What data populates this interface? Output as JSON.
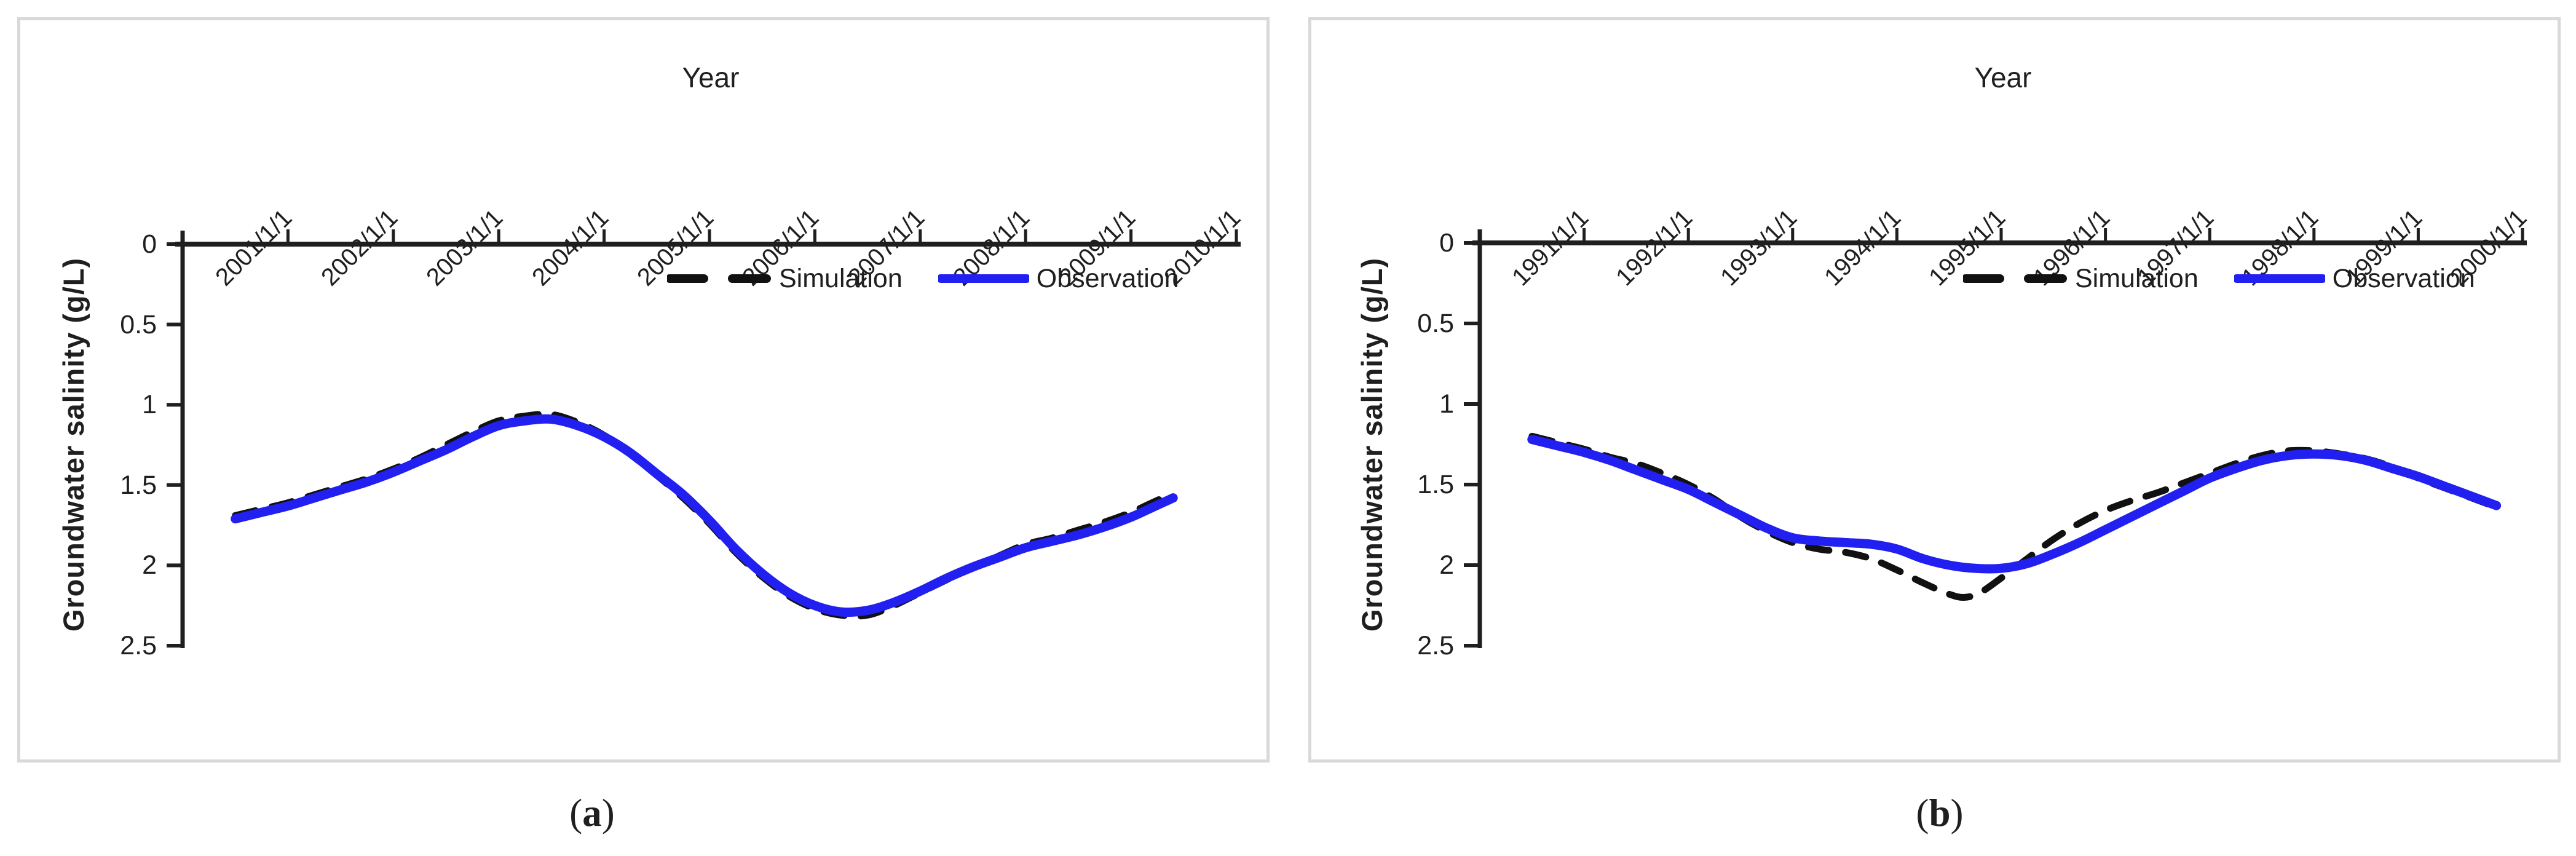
{
  "colors": {
    "observation": "#2120f0",
    "simulation": "#111111",
    "axis": "#1f1f1f",
    "panel_border": "#d9d9d9",
    "background": "#ffffff"
  },
  "captions": {
    "a": "(a)",
    "b": "(b)"
  },
  "chart_data": [
    {
      "type": "line",
      "panel": "a",
      "caption": "(a)",
      "title": "Year",
      "xlabel": "Year",
      "ylabel": "Groundwater salinity (g/L)",
      "ylim": [
        0,
        2.5
      ],
      "y_reversed": true,
      "grid": false,
      "legend_position": "inside-top",
      "x_tick_labels": [
        "2001/1/1",
        "2002/1/1",
        "2003/1/1",
        "2004/1/1",
        "2005/1/1",
        "2006/1/1",
        "2007/1/1",
        "2008/1/1",
        "2009/1/1",
        "2010/1/1"
      ],
      "y_tick_labels": [
        "0",
        "0.5",
        "1",
        "1.5",
        "2",
        "2.5"
      ],
      "x_range_years": [
        2000.0,
        2010.05
      ],
      "legend": [
        {
          "label": "Simulation",
          "style": "dashed",
          "color": "#111111"
        },
        {
          "label": "Observation",
          "style": "solid",
          "color": "#2120f0"
        }
      ],
      "series": [
        {
          "name": "Simulation",
          "style": "dashed",
          "points": [
            [
              2000.5,
              1.69
            ],
            [
              2000.75,
              1.65
            ],
            [
              2001,
              1.61
            ],
            [
              2001.25,
              1.56
            ],
            [
              2001.5,
              1.51
            ],
            [
              2001.75,
              1.46
            ],
            [
              2002,
              1.4
            ],
            [
              2002.25,
              1.33
            ],
            [
              2002.5,
              1.25
            ],
            [
              2002.75,
              1.17
            ],
            [
              2003,
              1.1
            ],
            [
              2003.25,
              1.07
            ],
            [
              2003.5,
              1.06
            ],
            [
              2003.75,
              1.11
            ],
            [
              2004,
              1.19
            ],
            [
              2004.25,
              1.31
            ],
            [
              2004.5,
              1.44
            ],
            [
              2004.75,
              1.58
            ],
            [
              2005,
              1.74
            ],
            [
              2005.25,
              1.92
            ],
            [
              2005.5,
              2.07
            ],
            [
              2005.75,
              2.19
            ],
            [
              2006,
              2.27
            ],
            [
              2006.25,
              2.31
            ],
            [
              2006.5,
              2.31
            ],
            [
              2006.75,
              2.25
            ],
            [
              2007,
              2.17
            ],
            [
              2007.25,
              2.09
            ],
            [
              2007.5,
              2.01
            ],
            [
              2007.75,
              1.94
            ],
            [
              2008,
              1.87
            ],
            [
              2008.25,
              1.83
            ],
            [
              2008.5,
              1.78
            ],
            [
              2008.75,
              1.73
            ],
            [
              2009,
              1.67
            ],
            [
              2009.2,
              1.61
            ],
            [
              2009.4,
              1.55
            ]
          ]
        },
        {
          "name": "Observation",
          "style": "solid",
          "points": [
            [
              2000.5,
              1.71
            ],
            [
              2000.75,
              1.67
            ],
            [
              2001,
              1.63
            ],
            [
              2001.25,
              1.58
            ],
            [
              2001.5,
              1.53
            ],
            [
              2001.75,
              1.48
            ],
            [
              2002,
              1.42
            ],
            [
              2002.25,
              1.35
            ],
            [
              2002.5,
              1.28
            ],
            [
              2002.75,
              1.2
            ],
            [
              2003,
              1.13
            ],
            [
              2003.25,
              1.1
            ],
            [
              2003.5,
              1.09
            ],
            [
              2003.75,
              1.13
            ],
            [
              2004,
              1.2
            ],
            [
              2004.25,
              1.3
            ],
            [
              2004.5,
              1.43
            ],
            [
              2004.75,
              1.56
            ],
            [
              2005,
              1.72
            ],
            [
              2005.25,
              1.9
            ],
            [
              2005.5,
              2.05
            ],
            [
              2005.75,
              2.17
            ],
            [
              2006,
              2.25
            ],
            [
              2006.25,
              2.29
            ],
            [
              2006.5,
              2.28
            ],
            [
              2006.75,
              2.23
            ],
            [
              2007,
              2.16
            ],
            [
              2007.25,
              2.08
            ],
            [
              2007.5,
              2.01
            ],
            [
              2007.75,
              1.95
            ],
            [
              2008,
              1.89
            ],
            [
              2008.25,
              1.85
            ],
            [
              2008.5,
              1.81
            ],
            [
              2008.75,
              1.76
            ],
            [
              2009,
              1.7
            ],
            [
              2009.2,
              1.64
            ],
            [
              2009.4,
              1.58
            ]
          ]
        }
      ]
    },
    {
      "type": "line",
      "panel": "b",
      "caption": "(b)",
      "title": "Year",
      "xlabel": "Year",
      "ylabel": "Groundwater salinity (g/L)",
      "ylim": [
        0,
        2.5
      ],
      "y_reversed": true,
      "grid": false,
      "legend_position": "inside-top",
      "x_tick_labels": [
        "1991/1/1",
        "1992/1/1",
        "1993/1/1",
        "1994/1/1",
        "1995/1/1",
        "1996/1/1",
        "1997/1/1",
        "1998/1/1",
        "1999/1/1",
        "2000/1/1"
      ],
      "y_tick_labels": [
        "0",
        "0.5",
        "1",
        "1.5",
        "2",
        "2.5"
      ],
      "x_range_years": [
        1990.0,
        2000.05
      ],
      "legend": [
        {
          "label": "Simulation",
          "style": "dashed",
          "color": "#111111"
        },
        {
          "label": "Observation",
          "style": "solid",
          "color": "#2120f0"
        }
      ],
      "series": [
        {
          "name": "Simulation",
          "style": "dashed",
          "points": [
            [
              1990.5,
              1.2
            ],
            [
              1990.75,
              1.24
            ],
            [
              1991,
              1.28
            ],
            [
              1991.25,
              1.33
            ],
            [
              1991.5,
              1.37
            ],
            [
              1991.75,
              1.43
            ],
            [
              1992,
              1.5
            ],
            [
              1992.25,
              1.59
            ],
            [
              1992.5,
              1.7
            ],
            [
              1992.75,
              1.79
            ],
            [
              1993,
              1.86
            ],
            [
              1993.25,
              1.9
            ],
            [
              1993.5,
              1.92
            ],
            [
              1993.75,
              1.96
            ],
            [
              1994,
              2.03
            ],
            [
              1994.25,
              2.11
            ],
            [
              1994.5,
              2.18
            ],
            [
              1994.65,
              2.2
            ],
            [
              1994.8,
              2.17
            ],
            [
              1995,
              2.08
            ],
            [
              1995.25,
              1.96
            ],
            [
              1995.5,
              1.84
            ],
            [
              1995.75,
              1.74
            ],
            [
              1996,
              1.66
            ],
            [
              1996.25,
              1.6
            ],
            [
              1996.5,
              1.55
            ],
            [
              1996.75,
              1.49
            ],
            [
              1997,
              1.43
            ],
            [
              1997.25,
              1.37
            ],
            [
              1997.5,
              1.32
            ],
            [
              1997.75,
              1.29
            ],
            [
              1998,
              1.29
            ],
            [
              1998.25,
              1.31
            ],
            [
              1998.5,
              1.34
            ],
            [
              1998.75,
              1.39
            ],
            [
              1999,
              1.46
            ],
            [
              1999.25,
              1.52
            ],
            [
              1999.5,
              1.58
            ],
            [
              1999.75,
              1.64
            ]
          ]
        },
        {
          "name": "Observation",
          "style": "solid",
          "points": [
            [
              1990.5,
              1.22
            ],
            [
              1990.75,
              1.26
            ],
            [
              1991,
              1.3
            ],
            [
              1991.25,
              1.35
            ],
            [
              1991.5,
              1.41
            ],
            [
              1991.75,
              1.47
            ],
            [
              1992,
              1.53
            ],
            [
              1992.25,
              1.61
            ],
            [
              1992.5,
              1.69
            ],
            [
              1992.75,
              1.77
            ],
            [
              1993,
              1.83
            ],
            [
              1993.25,
              1.85
            ],
            [
              1993.5,
              1.86
            ],
            [
              1993.75,
              1.87
            ],
            [
              1994,
              1.9
            ],
            [
              1994.25,
              1.96
            ],
            [
              1994.5,
              2.0
            ],
            [
              1994.75,
              2.02
            ],
            [
              1995,
              2.02
            ],
            [
              1995.25,
              1.99
            ],
            [
              1995.5,
              1.93
            ],
            [
              1995.75,
              1.86
            ],
            [
              1996,
              1.78
            ],
            [
              1996.25,
              1.7
            ],
            [
              1996.5,
              1.62
            ],
            [
              1996.75,
              1.54
            ],
            [
              1997,
              1.46
            ],
            [
              1997.25,
              1.4
            ],
            [
              1997.5,
              1.35
            ],
            [
              1997.75,
              1.32
            ],
            [
              1998,
              1.31
            ],
            [
              1998.25,
              1.32
            ],
            [
              1998.5,
              1.35
            ],
            [
              1998.75,
              1.4
            ],
            [
              1999,
              1.45
            ],
            [
              1999.25,
              1.51
            ],
            [
              1999.5,
              1.57
            ],
            [
              1999.75,
              1.63
            ]
          ]
        }
      ]
    }
  ]
}
